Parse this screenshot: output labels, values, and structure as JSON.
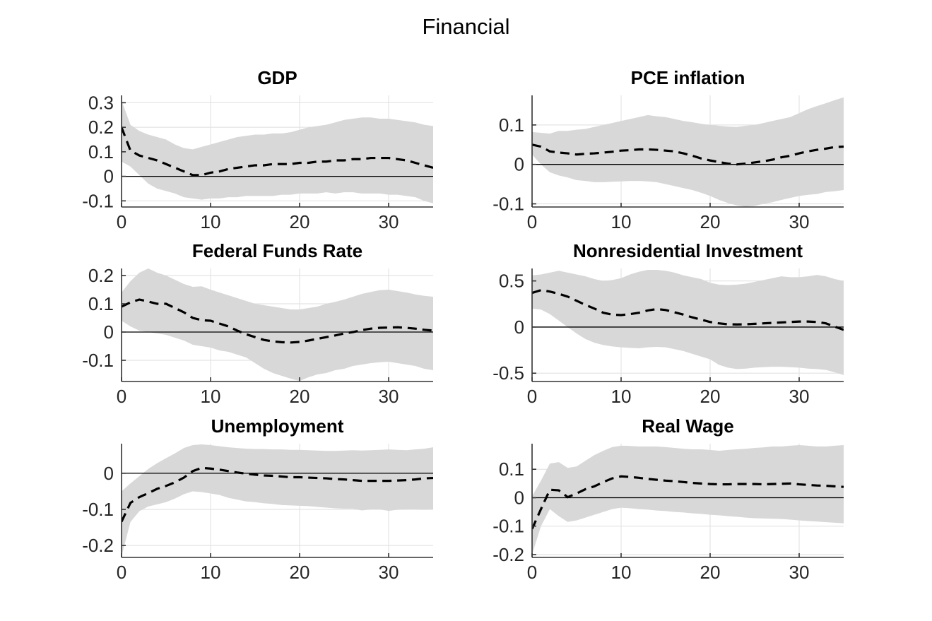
{
  "figure": {
    "title": "Financial"
  },
  "colors": {
    "background": "#ffffff",
    "band": "#d8d8d8",
    "median_line": "#000000",
    "zero_line": "#000000",
    "grid": "#e4e4e4",
    "axis": "#333333",
    "tick_label": "#262626"
  },
  "chart_data": [
    {
      "type": "line",
      "title": "GDP",
      "xlabel": "",
      "ylabel": "",
      "xlim": [
        0,
        35
      ],
      "xticks": [
        0,
        10,
        20,
        30
      ],
      "ylim": [
        -0.125,
        0.33
      ],
      "yticks": [
        -0.1,
        0,
        0.1,
        0.2,
        0.3
      ],
      "grid": true,
      "zero_line": true,
      "legend": "none",
      "x": [
        0,
        1,
        2,
        3,
        4,
        5,
        6,
        7,
        8,
        9,
        10,
        11,
        12,
        13,
        14,
        15,
        16,
        17,
        18,
        19,
        20,
        21,
        22,
        23,
        24,
        25,
        26,
        27,
        28,
        29,
        30,
        31,
        32,
        33,
        34,
        35
      ],
      "series": [
        {
          "name": "median",
          "style": "dashed",
          "values": [
            0.2,
            0.105,
            0.085,
            0.075,
            0.065,
            0.05,
            0.035,
            0.02,
            0.005,
            0.005,
            0.015,
            0.02,
            0.03,
            0.035,
            0.04,
            0.045,
            0.045,
            0.05,
            0.05,
            0.05,
            0.055,
            0.055,
            0.06,
            0.06,
            0.065,
            0.065,
            0.07,
            0.07,
            0.075,
            0.075,
            0.075,
            0.07,
            0.065,
            0.055,
            0.045,
            0.035
          ]
        },
        {
          "name": "band_upper",
          "style": "band-edge",
          "values": [
            0.31,
            0.21,
            0.185,
            0.17,
            0.16,
            0.15,
            0.13,
            0.115,
            0.11,
            0.12,
            0.13,
            0.14,
            0.15,
            0.16,
            0.165,
            0.17,
            0.17,
            0.175,
            0.175,
            0.18,
            0.19,
            0.2,
            0.205,
            0.21,
            0.22,
            0.23,
            0.235,
            0.24,
            0.24,
            0.235,
            0.235,
            0.23,
            0.225,
            0.22,
            0.21,
            0.205
          ]
        },
        {
          "name": "band_lower",
          "style": "band-edge",
          "values": [
            0.06,
            0.04,
            0.005,
            -0.03,
            -0.05,
            -0.06,
            -0.07,
            -0.085,
            -0.09,
            -0.095,
            -0.09,
            -0.09,
            -0.085,
            -0.085,
            -0.08,
            -0.08,
            -0.08,
            -0.08,
            -0.075,
            -0.075,
            -0.07,
            -0.07,
            -0.07,
            -0.065,
            -0.07,
            -0.065,
            -0.065,
            -0.07,
            -0.07,
            -0.07,
            -0.075,
            -0.075,
            -0.08,
            -0.085,
            -0.1,
            -0.11
          ]
        }
      ]
    },
    {
      "type": "line",
      "title": "PCE inflation",
      "xlabel": "",
      "ylabel": "",
      "xlim": [
        0,
        35
      ],
      "xticks": [
        0,
        10,
        20,
        30
      ],
      "ylim": [
        -0.108,
        0.175
      ],
      "yticks": [
        -0.1,
        0,
        0.1
      ],
      "grid": true,
      "zero_line": true,
      "legend": "none",
      "x": [
        0,
        1,
        2,
        3,
        4,
        5,
        6,
        7,
        8,
        9,
        10,
        11,
        12,
        13,
        14,
        15,
        16,
        17,
        18,
        19,
        20,
        21,
        22,
        23,
        24,
        25,
        26,
        27,
        28,
        29,
        30,
        31,
        32,
        33,
        34,
        35
      ],
      "series": [
        {
          "name": "median",
          "style": "dashed",
          "values": [
            0.05,
            0.045,
            0.033,
            0.03,
            0.028,
            0.025,
            0.027,
            0.028,
            0.03,
            0.032,
            0.035,
            0.036,
            0.038,
            0.038,
            0.037,
            0.035,
            0.033,
            0.028,
            0.022,
            0.015,
            0.01,
            0.006,
            0.002,
            0.0,
            0.002,
            0.005,
            0.008,
            0.012,
            0.018,
            0.022,
            0.028,
            0.033,
            0.037,
            0.04,
            0.044,
            0.045
          ]
        },
        {
          "name": "band_upper",
          "style": "band-edge",
          "values": [
            0.082,
            0.08,
            0.078,
            0.085,
            0.085,
            0.088,
            0.09,
            0.095,
            0.1,
            0.105,
            0.11,
            0.115,
            0.12,
            0.125,
            0.122,
            0.12,
            0.115,
            0.11,
            0.107,
            0.103,
            0.1,
            0.098,
            0.096,
            0.095,
            0.098,
            0.1,
            0.105,
            0.11,
            0.115,
            0.12,
            0.13,
            0.14,
            0.148,
            0.155,
            0.163,
            0.17
          ]
        },
        {
          "name": "band_lower",
          "style": "band-edge",
          "values": [
            0.025,
            0.0,
            -0.02,
            -0.028,
            -0.033,
            -0.04,
            -0.042,
            -0.045,
            -0.045,
            -0.044,
            -0.043,
            -0.042,
            -0.042,
            -0.043,
            -0.045,
            -0.05,
            -0.055,
            -0.06,
            -0.065,
            -0.072,
            -0.08,
            -0.09,
            -0.098,
            -0.104,
            -0.107,
            -0.105,
            -0.1,
            -0.096,
            -0.09,
            -0.085,
            -0.08,
            -0.077,
            -0.075,
            -0.07,
            -0.068,
            -0.065
          ]
        }
      ]
    },
    {
      "type": "line",
      "title": "Federal Funds Rate",
      "xlabel": "",
      "ylabel": "",
      "xlim": [
        0,
        35
      ],
      "xticks": [
        0,
        10,
        20,
        30
      ],
      "ylim": [
        -0.175,
        0.225
      ],
      "yticks": [
        -0.1,
        0,
        0.1,
        0.2
      ],
      "grid": true,
      "zero_line": true,
      "legend": "none",
      "x": [
        0,
        1,
        2,
        3,
        4,
        5,
        6,
        7,
        8,
        9,
        10,
        11,
        12,
        13,
        14,
        15,
        16,
        17,
        18,
        19,
        20,
        21,
        22,
        23,
        24,
        25,
        26,
        27,
        28,
        29,
        30,
        31,
        32,
        33,
        34,
        35
      ],
      "series": [
        {
          "name": "median",
          "style": "dashed",
          "values": [
            0.09,
            0.105,
            0.115,
            0.108,
            0.1,
            0.1,
            0.085,
            0.07,
            0.05,
            0.042,
            0.04,
            0.03,
            0.02,
            0.005,
            -0.008,
            -0.018,
            -0.028,
            -0.033,
            -0.036,
            -0.037,
            -0.035,
            -0.03,
            -0.024,
            -0.018,
            -0.012,
            -0.005,
            0.0,
            0.007,
            0.012,
            0.015,
            0.016,
            0.017,
            0.015,
            0.012,
            0.008,
            0.005
          ]
        },
        {
          "name": "band_upper",
          "style": "band-edge",
          "values": [
            0.14,
            0.18,
            0.21,
            0.225,
            0.21,
            0.2,
            0.185,
            0.17,
            0.16,
            0.162,
            0.15,
            0.14,
            0.13,
            0.12,
            0.11,
            0.1,
            0.095,
            0.09,
            0.085,
            0.08,
            0.08,
            0.085,
            0.09,
            0.1,
            0.107,
            0.115,
            0.125,
            0.135,
            0.142,
            0.148,
            0.15,
            0.145,
            0.14,
            0.133,
            0.128,
            0.125
          ]
        },
        {
          "name": "band_lower",
          "style": "band-edge",
          "values": [
            0.04,
            0.02,
            0.005,
            0.0,
            -0.005,
            -0.01,
            -0.02,
            -0.03,
            -0.045,
            -0.05,
            -0.055,
            -0.065,
            -0.07,
            -0.08,
            -0.09,
            -0.11,
            -0.13,
            -0.145,
            -0.155,
            -0.165,
            -0.173,
            -0.16,
            -0.15,
            -0.145,
            -0.135,
            -0.13,
            -0.12,
            -0.115,
            -0.11,
            -0.107,
            -0.105,
            -0.11,
            -0.115,
            -0.12,
            -0.13,
            -0.135
          ]
        }
      ]
    },
    {
      "type": "line",
      "title": "Nonresidential Investment",
      "xlabel": "",
      "ylabel": "",
      "xlim": [
        0,
        35
      ],
      "xticks": [
        0,
        10,
        20,
        30
      ],
      "ylim": [
        -0.59,
        0.635
      ],
      "yticks": [
        -0.5,
        0,
        0.5
      ],
      "grid": true,
      "zero_line": true,
      "legend": "none",
      "x": [
        0,
        1,
        2,
        3,
        4,
        5,
        6,
        7,
        8,
        9,
        10,
        11,
        12,
        13,
        14,
        15,
        16,
        17,
        18,
        19,
        20,
        21,
        22,
        23,
        24,
        25,
        26,
        27,
        28,
        29,
        30,
        31,
        32,
        33,
        34,
        35
      ],
      "series": [
        {
          "name": "median",
          "style": "dashed",
          "values": [
            0.37,
            0.4,
            0.385,
            0.36,
            0.33,
            0.285,
            0.24,
            0.2,
            0.155,
            0.135,
            0.13,
            0.14,
            0.155,
            0.18,
            0.195,
            0.185,
            0.16,
            0.135,
            0.105,
            0.08,
            0.055,
            0.04,
            0.03,
            0.028,
            0.03,
            0.035,
            0.04,
            0.045,
            0.05,
            0.055,
            0.06,
            0.06,
            0.055,
            0.04,
            0.005,
            -0.03
          ]
        },
        {
          "name": "band_upper",
          "style": "band-edge",
          "values": [
            0.56,
            0.57,
            0.59,
            0.61,
            0.59,
            0.57,
            0.55,
            0.52,
            0.5,
            0.51,
            0.53,
            0.57,
            0.6,
            0.62,
            0.62,
            0.61,
            0.59,
            0.56,
            0.54,
            0.52,
            0.48,
            0.46,
            0.455,
            0.46,
            0.47,
            0.49,
            0.51,
            0.53,
            0.55,
            0.54,
            0.54,
            0.55,
            0.565,
            0.55,
            0.52,
            0.5
          ]
        },
        {
          "name": "band_lower",
          "style": "band-edge",
          "values": [
            0.2,
            0.19,
            0.14,
            0.07,
            0.0,
            -0.07,
            -0.13,
            -0.17,
            -0.195,
            -0.21,
            -0.22,
            -0.225,
            -0.23,
            -0.22,
            -0.215,
            -0.22,
            -0.24,
            -0.26,
            -0.29,
            -0.32,
            -0.35,
            -0.41,
            -0.44,
            -0.455,
            -0.45,
            -0.44,
            -0.435,
            -0.43,
            -0.43,
            -0.435,
            -0.44,
            -0.45,
            -0.455,
            -0.465,
            -0.49,
            -0.52
          ]
        }
      ]
    },
    {
      "type": "line",
      "title": "Unemployment",
      "xlabel": "",
      "ylabel": "",
      "xlim": [
        0,
        35
      ],
      "xticks": [
        0,
        10,
        20,
        30
      ],
      "ylim": [
        -0.233,
        0.082
      ],
      "yticks": [
        -0.2,
        -0.1,
        0
      ],
      "grid": true,
      "zero_line": true,
      "legend": "none",
      "x": [
        0,
        1,
        2,
        3,
        4,
        5,
        6,
        7,
        8,
        9,
        10,
        11,
        12,
        13,
        14,
        15,
        16,
        17,
        18,
        19,
        20,
        21,
        22,
        23,
        24,
        25,
        26,
        27,
        28,
        29,
        30,
        31,
        32,
        33,
        34,
        35
      ],
      "series": [
        {
          "name": "median",
          "style": "dashed",
          "values": [
            -0.134,
            -0.082,
            -0.066,
            -0.055,
            -0.043,
            -0.035,
            -0.025,
            -0.012,
            0.006,
            0.015,
            0.013,
            0.01,
            0.006,
            0.002,
            -0.001,
            -0.004,
            -0.006,
            -0.007,
            -0.009,
            -0.011,
            -0.011,
            -0.012,
            -0.013,
            -0.014,
            -0.016,
            -0.017,
            -0.019,
            -0.021,
            -0.021,
            -0.021,
            -0.021,
            -0.02,
            -0.019,
            -0.017,
            -0.014,
            -0.013
          ]
        },
        {
          "name": "band_upper",
          "style": "band-edge",
          "values": [
            -0.05,
            -0.028,
            -0.008,
            0.012,
            0.028,
            0.042,
            0.055,
            0.07,
            0.078,
            0.08,
            0.078,
            0.075,
            0.072,
            0.07,
            0.068,
            0.067,
            0.067,
            0.066,
            0.066,
            0.065,
            0.065,
            0.064,
            0.063,
            0.062,
            0.062,
            0.063,
            0.064,
            0.063,
            0.064,
            0.065,
            0.066,
            0.065,
            0.064,
            0.066,
            0.068,
            0.072
          ]
        },
        {
          "name": "band_lower",
          "style": "band-edge",
          "values": [
            -0.23,
            -0.135,
            -0.105,
            -0.092,
            -0.086,
            -0.08,
            -0.07,
            -0.058,
            -0.05,
            -0.052,
            -0.056,
            -0.06,
            -0.068,
            -0.073,
            -0.078,
            -0.08,
            -0.083,
            -0.085,
            -0.088,
            -0.089,
            -0.09,
            -0.091,
            -0.093,
            -0.095,
            -0.097,
            -0.098,
            -0.098,
            -0.103,
            -0.1,
            -0.1,
            -0.104,
            -0.101,
            -0.1,
            -0.1,
            -0.101,
            -0.1
          ]
        }
      ]
    },
    {
      "type": "line",
      "title": "Real Wage",
      "xlabel": "",
      "ylabel": "",
      "xlim": [
        0,
        35
      ],
      "xticks": [
        0,
        10,
        20,
        30
      ],
      "ylim": [
        -0.21,
        0.19
      ],
      "yticks": [
        -0.2,
        -0.1,
        0,
        0.1
      ],
      "grid": true,
      "zero_line": true,
      "legend": "none",
      "x": [
        0,
        1,
        2,
        3,
        4,
        5,
        6,
        7,
        8,
        9,
        10,
        11,
        12,
        13,
        14,
        15,
        16,
        17,
        18,
        19,
        20,
        21,
        22,
        23,
        24,
        25,
        26,
        27,
        28,
        29,
        30,
        31,
        32,
        33,
        34,
        35
      ],
      "series": [
        {
          "name": "median",
          "style": "dashed",
          "values": [
            -0.11,
            -0.04,
            0.028,
            0.026,
            0.002,
            0.015,
            0.03,
            0.04,
            0.055,
            0.068,
            0.075,
            0.073,
            0.07,
            0.066,
            0.063,
            0.06,
            0.058,
            0.055,
            0.052,
            0.05,
            0.048,
            0.047,
            0.047,
            0.048,
            0.048,
            0.048,
            0.047,
            0.048,
            0.049,
            0.05,
            0.047,
            0.045,
            0.043,
            0.042,
            0.04,
            0.038
          ]
        },
        {
          "name": "band_upper",
          "style": "band-edge",
          "values": [
            0.005,
            0.06,
            0.12,
            0.125,
            0.105,
            0.11,
            0.13,
            0.15,
            0.165,
            0.178,
            0.183,
            0.182,
            0.18,
            0.18,
            0.18,
            0.178,
            0.175,
            0.172,
            0.17,
            0.17,
            0.168,
            0.165,
            0.168,
            0.17,
            0.172,
            0.175,
            0.177,
            0.18,
            0.18,
            0.183,
            0.185,
            0.183,
            0.18,
            0.18,
            0.183,
            0.185
          ]
        },
        {
          "name": "band_lower",
          "style": "band-edge",
          "values": [
            -0.2,
            -0.1,
            -0.04,
            -0.065,
            -0.085,
            -0.08,
            -0.07,
            -0.06,
            -0.05,
            -0.04,
            -0.035,
            -0.037,
            -0.04,
            -0.042,
            -0.045,
            -0.047,
            -0.05,
            -0.052,
            -0.055,
            -0.057,
            -0.06,
            -0.062,
            -0.065,
            -0.067,
            -0.07,
            -0.072,
            -0.073,
            -0.074,
            -0.075,
            -0.077,
            -0.08,
            -0.082,
            -0.084,
            -0.086,
            -0.088,
            -0.09
          ]
        }
      ]
    }
  ]
}
